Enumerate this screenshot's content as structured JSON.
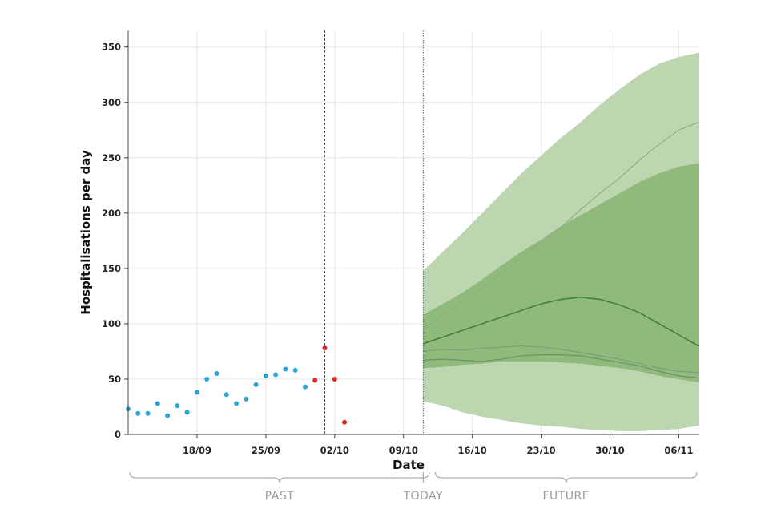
{
  "chart_data": {
    "type": "line",
    "xlabel": "Date",
    "ylabel": "Hospitalisations per day",
    "x_range": [
      "2020-09-11",
      "2020-11-08"
    ],
    "ylim": [
      0,
      365
    ],
    "yticks": [
      0,
      50,
      100,
      150,
      200,
      250,
      300,
      350
    ],
    "xticks": [
      {
        "date": "2020-09-18",
        "label": "18/09"
      },
      {
        "date": "2020-09-25",
        "label": "25/09"
      },
      {
        "date": "2020-10-02",
        "label": "02/10"
      },
      {
        "date": "2020-10-09",
        "label": "09/10"
      },
      {
        "date": "2020-10-16",
        "label": "16/10"
      },
      {
        "date": "2020-10-23",
        "label": "23/10"
      },
      {
        "date": "2020-10-30",
        "label": "30/10"
      },
      {
        "date": "2020-11-06",
        "label": "06/11"
      }
    ],
    "grid": true,
    "vertical_markers": [
      {
        "date": "2020-10-01",
        "style": "dashed"
      },
      {
        "date": "2020-10-11",
        "style": "dotted"
      }
    ],
    "series": [
      {
        "kind": "points",
        "color": "#29a3d8",
        "points": [
          [
            "2020-09-11",
            23
          ],
          [
            "2020-09-12",
            19
          ],
          [
            "2020-09-13",
            19
          ],
          [
            "2020-09-14",
            28
          ],
          [
            "2020-09-15",
            17
          ],
          [
            "2020-09-16",
            26
          ],
          [
            "2020-09-17",
            20
          ],
          [
            "2020-09-18",
            38
          ],
          [
            "2020-09-19",
            50
          ],
          [
            "2020-09-20",
            55
          ],
          [
            "2020-09-21",
            36
          ],
          [
            "2020-09-22",
            28
          ],
          [
            "2020-09-23",
            32
          ],
          [
            "2020-09-24",
            45
          ],
          [
            "2020-09-25",
            53
          ],
          [
            "2020-09-26",
            54
          ],
          [
            "2020-09-27",
            59
          ],
          [
            "2020-09-28",
            58
          ],
          [
            "2020-09-29",
            43
          ]
        ]
      },
      {
        "kind": "points",
        "color": "#e02424",
        "points": [
          [
            "2020-09-30",
            49
          ],
          [
            "2020-10-01",
            78
          ],
          [
            "2020-10-02",
            50
          ],
          [
            "2020-10-03",
            11
          ]
        ]
      },
      {
        "kind": "band",
        "color": "#bcd6b0",
        "lower": [
          [
            "2020-10-11",
            30
          ],
          [
            "2020-10-13",
            26
          ],
          [
            "2020-10-15",
            20
          ],
          [
            "2020-10-17",
            16
          ],
          [
            "2020-10-19",
            13
          ],
          [
            "2020-10-21",
            10
          ],
          [
            "2020-10-23",
            8
          ],
          [
            "2020-10-25",
            7
          ],
          [
            "2020-10-27",
            5
          ],
          [
            "2020-10-29",
            4
          ],
          [
            "2020-10-31",
            3
          ],
          [
            "2020-11-02",
            3
          ],
          [
            "2020-11-04",
            4
          ],
          [
            "2020-11-06",
            5
          ],
          [
            "2020-11-08",
            8
          ]
        ],
        "upper": [
          [
            "2020-10-11",
            148
          ],
          [
            "2020-10-13",
            165
          ],
          [
            "2020-10-15",
            182
          ],
          [
            "2020-10-17",
            200
          ],
          [
            "2020-10-19",
            218
          ],
          [
            "2020-10-21",
            236
          ],
          [
            "2020-10-23",
            252
          ],
          [
            "2020-10-25",
            268
          ],
          [
            "2020-10-27",
            282
          ],
          [
            "2020-10-29",
            298
          ],
          [
            "2020-10-31",
            312
          ],
          [
            "2020-11-02",
            325
          ],
          [
            "2020-11-04",
            335
          ],
          [
            "2020-11-06",
            341
          ],
          [
            "2020-11-08",
            345
          ]
        ]
      },
      {
        "kind": "band",
        "color": "#8fba7c",
        "lower": [
          [
            "2020-10-11",
            60
          ],
          [
            "2020-10-13",
            61
          ],
          [
            "2020-10-15",
            63
          ],
          [
            "2020-10-17",
            64
          ],
          [
            "2020-10-19",
            66
          ],
          [
            "2020-10-21",
            66
          ],
          [
            "2020-10-23",
            66
          ],
          [
            "2020-10-25",
            65
          ],
          [
            "2020-10-27",
            64
          ],
          [
            "2020-10-29",
            62
          ],
          [
            "2020-10-31",
            60
          ],
          [
            "2020-11-02",
            57
          ],
          [
            "2020-11-04",
            53
          ],
          [
            "2020-11-06",
            50
          ],
          [
            "2020-11-08",
            47
          ]
        ],
        "upper": [
          [
            "2020-10-11",
            108
          ],
          [
            "2020-10-13",
            118
          ],
          [
            "2020-10-15",
            128
          ],
          [
            "2020-10-17",
            140
          ],
          [
            "2020-10-19",
            153
          ],
          [
            "2020-10-21",
            165
          ],
          [
            "2020-10-23",
            176
          ],
          [
            "2020-10-25",
            188
          ],
          [
            "2020-10-27",
            198
          ],
          [
            "2020-10-29",
            208
          ],
          [
            "2020-10-31",
            218
          ],
          [
            "2020-11-02",
            228
          ],
          [
            "2020-11-04",
            236
          ],
          [
            "2020-11-06",
            242
          ],
          [
            "2020-11-08",
            245
          ]
        ]
      },
      {
        "kind": "line",
        "color": "#8fa989",
        "points": [
          [
            "2020-10-11",
            95
          ],
          [
            "2020-10-13",
            108
          ],
          [
            "2020-10-15",
            120
          ],
          [
            "2020-10-17",
            132
          ],
          [
            "2020-10-19",
            145
          ],
          [
            "2020-10-21",
            160
          ],
          [
            "2020-10-23",
            173
          ],
          [
            "2020-10-25",
            187
          ],
          [
            "2020-10-27",
            203
          ],
          [
            "2020-10-29",
            218
          ],
          [
            "2020-10-31",
            232
          ],
          [
            "2020-11-02",
            248
          ],
          [
            "2020-11-04",
            262
          ],
          [
            "2020-11-06",
            275
          ],
          [
            "2020-11-08",
            282
          ]
        ]
      },
      {
        "kind": "line",
        "color": "#7e9a78",
        "points": [
          [
            "2020-10-11",
            75
          ],
          [
            "2020-10-13",
            77
          ],
          [
            "2020-10-15",
            76
          ],
          [
            "2020-10-17",
            78
          ],
          [
            "2020-10-19",
            79
          ],
          [
            "2020-10-21",
            80
          ],
          [
            "2020-10-23",
            79
          ],
          [
            "2020-10-25",
            77
          ],
          [
            "2020-10-27",
            74
          ],
          [
            "2020-10-29",
            71
          ],
          [
            "2020-10-31",
            68
          ],
          [
            "2020-11-02",
            64
          ],
          [
            "2020-11-04",
            60
          ],
          [
            "2020-11-06",
            57
          ],
          [
            "2020-11-08",
            56
          ]
        ]
      },
      {
        "kind": "line",
        "color": "#6d8b67",
        "points": [
          [
            "2020-10-11",
            67
          ],
          [
            "2020-10-13",
            68
          ],
          [
            "2020-10-15",
            67
          ],
          [
            "2020-10-17",
            66
          ],
          [
            "2020-10-19",
            68
          ],
          [
            "2020-10-21",
            71
          ],
          [
            "2020-10-23",
            72
          ],
          [
            "2020-10-25",
            72
          ],
          [
            "2020-10-27",
            71
          ],
          [
            "2020-10-29",
            68
          ],
          [
            "2020-10-31",
            65
          ],
          [
            "2020-11-02",
            62
          ],
          [
            "2020-11-04",
            57
          ],
          [
            "2020-11-06",
            53
          ],
          [
            "2020-11-08",
            51
          ]
        ]
      },
      {
        "kind": "line",
        "color": "#3f7f34",
        "points": [
          [
            "2020-10-11",
            82
          ],
          [
            "2020-10-13",
            88
          ],
          [
            "2020-10-15",
            94
          ],
          [
            "2020-10-17",
            100
          ],
          [
            "2020-10-19",
            106
          ],
          [
            "2020-10-21",
            112
          ],
          [
            "2020-10-23",
            118
          ],
          [
            "2020-10-25",
            122
          ],
          [
            "2020-10-27",
            124
          ],
          [
            "2020-10-29",
            122
          ],
          [
            "2020-10-31",
            117
          ],
          [
            "2020-11-02",
            110
          ],
          [
            "2020-11-04",
            100
          ],
          [
            "2020-11-06",
            90
          ],
          [
            "2020-11-08",
            80
          ]
        ]
      }
    ],
    "periods": [
      {
        "label": "PAST",
        "from": "2020-09-11",
        "to": "2020-10-10"
      },
      {
        "label": "TODAY",
        "at": "2020-10-11"
      },
      {
        "label": "FUTURE",
        "from": "2020-10-12",
        "to": "2020-11-08"
      }
    ]
  }
}
